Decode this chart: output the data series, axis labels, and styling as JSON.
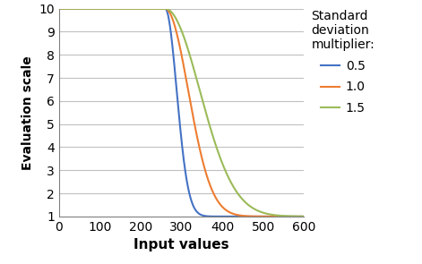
{
  "title": "",
  "xlabel": "Input values",
  "ylabel": "Evaluation scale",
  "xlim": [
    0,
    600
  ],
  "ylim": [
    1,
    10
  ],
  "xticks": [
    0,
    100,
    200,
    300,
    400,
    500,
    600
  ],
  "yticks": [
    1,
    2,
    3,
    4,
    5,
    6,
    7,
    8,
    9,
    10
  ],
  "lines": [
    {
      "label": "0.5",
      "color": "#4472C4",
      "multiplier": 0.5
    },
    {
      "label": "1.0",
      "color": "#ED7D31",
      "multiplier": 1.0
    },
    {
      "label": "1.5",
      "color": "#9BBB59",
      "multiplier": 1.5
    }
  ],
  "legend_title": "Standard\ndeviation\nmultiplier:",
  "mean": 260,
  "x_end": 500,
  "y_max": 10,
  "y_min": 1,
  "std_base": 75,
  "background_color": "#FFFFFF",
  "grid_color": "#C0C0C0",
  "xlabel_fontsize": 11,
  "ylabel_fontsize": 10,
  "legend_fontsize": 10,
  "legend_title_fontsize": 10
}
